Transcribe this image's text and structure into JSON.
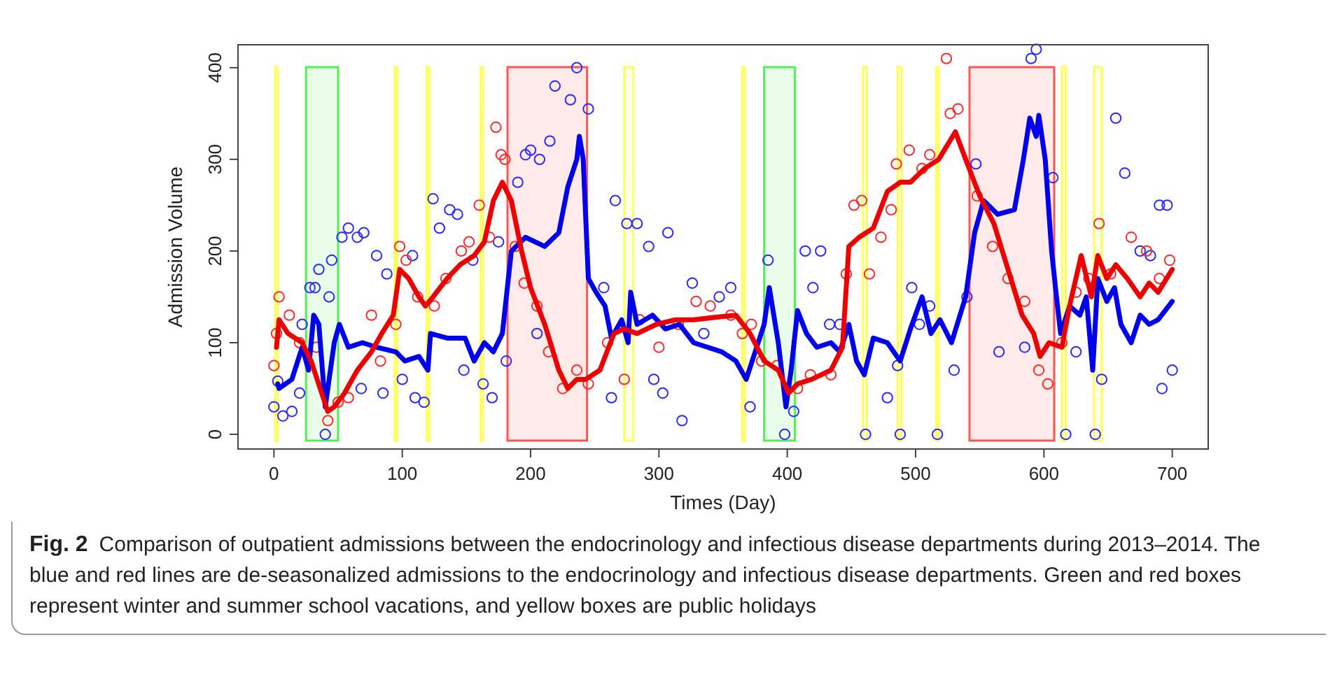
{
  "chart_data": {
    "type": "scatter",
    "xlabel": "Times (Day)",
    "ylabel": "Admission Volume",
    "xlim": [
      -28,
      728
    ],
    "ylim": [
      -16,
      425
    ],
    "xticks": [
      0,
      100,
      200,
      300,
      400,
      500,
      600,
      700
    ],
    "yticks": [
      0,
      100,
      200,
      300,
      400
    ],
    "grid": false,
    "series": [
      {
        "marker": "circle",
        "color": "#2b2bff",
        "x": [
          0,
          3,
          7,
          14,
          20,
          22,
          28,
          32,
          35,
          40,
          43,
          45,
          53,
          58,
          65,
          70,
          68,
          80,
          85,
          88,
          100,
          108,
          110,
          117,
          124,
          129,
          137,
          143,
          148,
          155,
          163,
          170,
          175,
          181,
          190,
          196,
          200,
          207,
          205,
          215,
          219,
          236,
          231,
          245,
          257,
          263,
          266,
          275,
          283,
          292,
          296,
          303,
          307,
          318,
          326,
          335,
          347,
          356,
          371,
          385,
          398,
          405,
          414,
          420,
          426,
          433,
          441,
          461,
          478,
          486,
          488,
          497,
          503,
          511,
          517,
          530,
          540,
          547,
          565,
          585,
          590,
          594,
          607,
          617,
          625,
          640,
          645,
          656,
          663,
          675,
          683,
          690,
          692,
          696,
          700
        ],
        "values": [
          30,
          58,
          20,
          25,
          45,
          120,
          160,
          160,
          180,
          0,
          150,
          190,
          215,
          225,
          215,
          220,
          50,
          195,
          45,
          175,
          60,
          195,
          40,
          35,
          257,
          225,
          245,
          240,
          70,
          190,
          55,
          40,
          210,
          80,
          275,
          305,
          310,
          300,
          110,
          320,
          380,
          400,
          365,
          355,
          160,
          40,
          255,
          230,
          230,
          205,
          60,
          45,
          220,
          15,
          165,
          110,
          150,
          160,
          30,
          190,
          0,
          25,
          200,
          160,
          200,
          120,
          120,
          0,
          40,
          75,
          0,
          160,
          120,
          140,
          0,
          70,
          150,
          295,
          90,
          95,
          410,
          420,
          280,
          0,
          90,
          0,
          60,
          345,
          285,
          200,
          195,
          250,
          50,
          250,
          70
        ]
      },
      {
        "marker": "circle",
        "color": "#ff2b2b",
        "x": [
          0,
          2,
          4,
          12,
          20,
          33,
          42,
          50,
          58,
          76,
          83,
          95,
          98,
          103,
          112,
          125,
          134,
          146,
          152,
          160,
          168,
          173,
          177,
          180,
          188,
          195,
          205,
          214,
          225,
          236,
          245,
          260,
          273,
          285,
          300,
          315,
          329,
          340,
          356,
          365,
          372,
          380,
          392,
          408,
          418,
          434,
          446,
          452,
          458,
          464,
          473,
          481,
          485,
          495,
          505,
          511,
          524,
          527,
          533,
          548,
          560,
          572,
          585,
          596,
          603,
          614,
          625,
          635,
          643,
          652,
          668,
          680,
          690,
          698
        ],
        "values": [
          75,
          110,
          150,
          130,
          100,
          95,
          15,
          35,
          40,
          130,
          80,
          120,
          205,
          190,
          150,
          140,
          170,
          200,
          210,
          250,
          215,
          335,
          305,
          300,
          205,
          165,
          140,
          90,
          50,
          70,
          55,
          100,
          60,
          125,
          95,
          120,
          145,
          140,
          130,
          110,
          120,
          80,
          75,
          50,
          65,
          65,
          175,
          250,
          255,
          175,
          215,
          245,
          295,
          310,
          290,
          305,
          410,
          350,
          355,
          260,
          205,
          170,
          145,
          70,
          55,
          100,
          155,
          170,
          230,
          175,
          215,
          200,
          170,
          190
        ]
      },
      {
        "type": "line",
        "marker": "none",
        "line_style": "solid",
        "color": "#0000ee",
        "x": [
          3,
          4,
          14,
          22,
          27,
          31,
          35,
          40,
          47,
          51,
          58,
          69,
          80,
          95,
          102,
          113,
          120,
          122,
          135,
          149,
          156,
          164,
          171,
          178,
          185,
          196,
          211,
          222,
          229,
          236,
          238,
          241,
          245,
          251,
          258,
          263,
          271,
          276,
          278,
          283,
          295,
          305,
          316,
          327,
          338,
          349,
          360,
          368,
          375,
          382,
          386,
          393,
          399,
          403,
          408,
          415,
          423,
          434,
          441,
          448,
          454,
          460,
          467,
          478,
          488,
          496,
          505,
          512,
          519,
          528,
          539,
          546,
          553,
          564,
          577,
          584,
          589,
          594,
          596,
          601,
          606,
          609,
          613,
          620,
          628,
          633,
          638,
          642,
          649,
          655,
          660,
          668,
          675,
          682,
          689,
          700
        ],
        "values": [
          55,
          50,
          60,
          95,
          70,
          130,
          120,
          30,
          100,
          120,
          95,
          100,
          95,
          90,
          80,
          85,
          70,
          110,
          105,
          105,
          80,
          100,
          90,
          110,
          200,
          215,
          205,
          220,
          270,
          300,
          325,
          300,
          170,
          155,
          140,
          105,
          125,
          100,
          155,
          120,
          130,
          115,
          120,
          100,
          95,
          90,
          80,
          60,
          90,
          120,
          160,
          100,
          30,
          70,
          135,
          110,
          95,
          100,
          90,
          120,
          80,
          65,
          105,
          100,
          80,
          115,
          150,
          110,
          125,
          100,
          150,
          220,
          255,
          240,
          245,
          300,
          345,
          325,
          348,
          300,
          200,
          160,
          110,
          140,
          130,
          150,
          70,
          170,
          145,
          160,
          120,
          100,
          130,
          120,
          125,
          145
        ]
      },
      {
        "type": "line",
        "marker": "none",
        "line_style": "solid",
        "color": "#ee0000",
        "x": [
          2,
          4,
          11,
          22,
          29,
          36,
          42,
          47,
          55,
          65,
          76,
          84,
          93,
          98,
          105,
          113,
          118,
          124,
          135,
          145,
          156,
          164,
          171,
          178,
          185,
          193,
          200,
          211,
          222,
          229,
          236,
          243,
          254,
          265,
          273,
          283,
          298,
          313,
          327,
          346,
          360,
          371,
          382,
          393,
          401,
          408,
          419,
          434,
          443,
          448,
          456,
          467,
          478,
          488,
          496,
          507,
          518,
          531,
          539,
          550,
          561,
          572,
          583,
          592,
          597,
          604,
          614,
          620,
          629,
          637,
          642,
          649,
          656,
          665,
          675,
          682,
          689,
          700
        ],
        "values": [
          95,
          125,
          110,
          100,
          80,
          50,
          25,
          30,
          45,
          70,
          90,
          110,
          130,
          180,
          170,
          150,
          140,
          150,
          170,
          185,
          195,
          210,
          255,
          275,
          255,
          200,
          160,
          120,
          70,
          50,
          60,
          60,
          70,
          110,
          115,
          110,
          120,
          125,
          125,
          128,
          130,
          110,
          80,
          70,
          45,
          55,
          60,
          70,
          95,
          205,
          215,
          225,
          265,
          275,
          275,
          290,
          300,
          330,
          300,
          260,
          230,
          180,
          130,
          110,
          85,
          100,
          95,
          140,
          195,
          150,
          195,
          170,
          185,
          170,
          150,
          165,
          155,
          180
        ]
      }
    ],
    "bands": [
      {
        "axis": "x",
        "from": 1,
        "to": 3,
        "color": "#ffff55"
      },
      {
        "axis": "x",
        "from": 25,
        "to": 50,
        "color": "#55ee55"
      },
      {
        "axis": "x",
        "from": 94,
        "to": 96,
        "color": "#ffff55"
      },
      {
        "axis": "x",
        "from": 119,
        "to": 121,
        "color": "#ffff55"
      },
      {
        "axis": "x",
        "from": 161,
        "to": 163,
        "color": "#ffff55"
      },
      {
        "axis": "x",
        "from": 182,
        "to": 244,
        "color": "#ff5555"
      },
      {
        "axis": "x",
        "from": 273,
        "to": 280,
        "color": "#ffff55"
      },
      {
        "axis": "x",
        "from": 365,
        "to": 367,
        "color": "#ffff55"
      },
      {
        "axis": "x",
        "from": 382,
        "to": 406,
        "color": "#55ee55"
      },
      {
        "axis": "x",
        "from": 459,
        "to": 462,
        "color": "#ffff55"
      },
      {
        "axis": "x",
        "from": 486,
        "to": 489,
        "color": "#ffff55"
      },
      {
        "axis": "x",
        "from": 516,
        "to": 518,
        "color": "#ffff55"
      },
      {
        "axis": "x",
        "from": 542,
        "to": 608,
        "color": "#ff5555"
      },
      {
        "axis": "x",
        "from": 614,
        "to": 617,
        "color": "#ffff55"
      },
      {
        "axis": "x",
        "from": 639,
        "to": 645,
        "color": "#ffff55"
      }
    ],
    "annotations": [
      "Fig. 2",
      "Comparison of outpatient admissions between the endocrinology and infectious disease departments during 2013–2014. The blue and red lines are de-seasonalized admissions to the endocrinology and infectious disease departments. Green and red boxes represent winter and summer school vacations, and yellow boxes are public holidays"
    ]
  }
}
